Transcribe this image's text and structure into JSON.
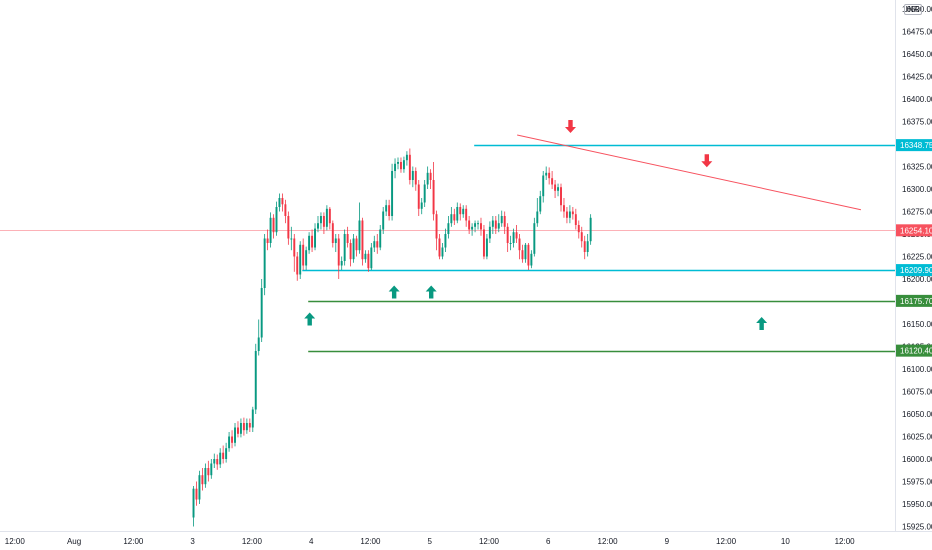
{
  "currency": "INR",
  "colors": {
    "up": "#089981",
    "down": "#f23645",
    "resistance": "#00bcd4",
    "support": "#388e3c",
    "trendline": "#f7525f",
    "last_price": "#f7525f",
    "arrow_up": "#089981",
    "arrow_down": "#f23645"
  },
  "chart_data": {
    "type": "candlestick",
    "ylim": [
      15920,
      16510
    ],
    "price_ticks": [
      "16500.00",
      "16475.00",
      "16450.00",
      "16425.00",
      "16400.00",
      "16375.00",
      "16350.00",
      "16325.00",
      "16300.00",
      "16275.00",
      "16250.00",
      "16225.00",
      "16200.00",
      "16175.00",
      "16150.00",
      "16125.00",
      "16100.00",
      "16075.00",
      "16050.00",
      "16025.00",
      "16000.00",
      "15975.00",
      "15950.00",
      "15925.00"
    ],
    "time_ticks": [
      {
        "x": -4.5,
        "label": "12:00"
      },
      {
        "x": -2.5,
        "label": "Aug"
      },
      {
        "x": -0.5,
        "label": "12:00"
      },
      {
        "x": 1.5,
        "label": "3"
      },
      {
        "x": 3.5,
        "label": "12:00"
      },
      {
        "x": 5.5,
        "label": "4"
      },
      {
        "x": 7.5,
        "label": "12:00"
      },
      {
        "x": 9.5,
        "label": "5"
      },
      {
        "x": 11.5,
        "label": "12:00"
      },
      {
        "x": 13.5,
        "label": "6"
      },
      {
        "x": 15.5,
        "label": "12:00"
      },
      {
        "x": 17.5,
        "label": "9"
      },
      {
        "x": 19.5,
        "label": "12:00"
      },
      {
        "x": 21.5,
        "label": "10"
      },
      {
        "x": 23.5,
        "label": "12:00"
      }
    ],
    "levels": [
      {
        "name": "resistance",
        "price": 16348.75,
        "label": "16348.75",
        "x_start": 11.0,
        "color": "resistance"
      },
      {
        "name": "support-upper",
        "price": 16209.9,
        "label": "16209.90",
        "x_start": 5.2,
        "color": "resistance"
      },
      {
        "name": "support-mid",
        "price": 16175.7,
        "label": "16175.70",
        "x_start": 5.4,
        "color": "support"
      },
      {
        "name": "support-lower",
        "price": 16120.4,
        "label": "16120.40",
        "x_start": 5.4,
        "color": "support"
      }
    ],
    "last_price": {
      "price": 16254.1,
      "label": "16254.10"
    },
    "trendline": {
      "x1": 12.45,
      "y1": 16360,
      "x2": 24.05,
      "y2": 16277
    },
    "arrows": [
      {
        "dir": "up",
        "x": 5.45,
        "price": 16155
      },
      {
        "dir": "up",
        "x": 8.3,
        "price": 16185
      },
      {
        "dir": "up",
        "x": 9.55,
        "price": 16185
      },
      {
        "dir": "down",
        "x": 14.25,
        "price": 16370
      },
      {
        "dir": "down",
        "x": 18.85,
        "price": 16332
      },
      {
        "dir": "up",
        "x": 20.7,
        "price": 16150
      }
    ],
    "candles": [
      [
        1.53,
        15935,
        15967,
        15925,
        15970
      ],
      [
        1.63,
        15967,
        15955,
        15948,
        15975
      ],
      [
        1.73,
        15955,
        15982,
        15950,
        15987
      ],
      [
        1.83,
        15982,
        15972,
        15965,
        15990
      ],
      [
        1.93,
        15972,
        15990,
        15968,
        15995
      ],
      [
        2.03,
        15990,
        15982,
        15975,
        15998
      ],
      [
        2.13,
        15982,
        15995,
        15978,
        16000
      ],
      [
        2.23,
        15995,
        16000,
        15990,
        16006
      ],
      [
        2.33,
        16000,
        15994,
        15988,
        16005
      ],
      [
        2.43,
        15994,
        16007,
        15990,
        16012
      ],
      [
        2.53,
        16007,
        16000,
        15995,
        16015
      ],
      [
        2.63,
        16000,
        16012,
        15996,
        16018
      ],
      [
        2.73,
        16012,
        16025,
        16008,
        16030
      ],
      [
        2.83,
        16025,
        16018,
        16012,
        16032
      ],
      [
        2.93,
        16018,
        16035,
        16014,
        16040
      ],
      [
        3.03,
        16035,
        16028,
        16024,
        16042
      ],
      [
        3.13,
        16028,
        16040,
        16024,
        16045
      ],
      [
        3.23,
        16040,
        16032,
        16026,
        16046
      ],
      [
        3.33,
        16032,
        16040,
        16028,
        16045
      ],
      [
        3.43,
        16040,
        16035,
        16030,
        16045
      ],
      [
        3.53,
        16035,
        16055,
        16030,
        16058
      ],
      [
        3.63,
        16055,
        16120,
        16050,
        16128
      ],
      [
        3.73,
        16120,
        16135,
        16115,
        16155
      ],
      [
        3.83,
        16135,
        16190,
        16130,
        16200
      ],
      [
        3.93,
        16190,
        16245,
        16182,
        16250
      ],
      [
        4.03,
        16245,
        16240,
        16232,
        16255
      ],
      [
        4.13,
        16240,
        16268,
        16235,
        16274
      ],
      [
        4.23,
        16268,
        16252,
        16245,
        16272
      ],
      [
        4.33,
        16252,
        16280,
        16248,
        16286
      ],
      [
        4.43,
        16280,
        16290,
        16275,
        16295
      ],
      [
        4.53,
        16290,
        16283,
        16275,
        16295
      ],
      [
        4.63,
        16283,
        16270,
        16262,
        16288
      ],
      [
        4.73,
        16270,
        16245,
        16238,
        16275
      ],
      [
        4.83,
        16245,
        16245,
        16232,
        16258
      ],
      [
        4.93,
        16245,
        16225,
        16208,
        16250
      ],
      [
        5.03,
        16225,
        16205,
        16198,
        16230
      ],
      [
        5.13,
        16205,
        16238,
        16200,
        16242
      ],
      [
        5.23,
        16238,
        16215,
        16210,
        16245
      ],
      [
        5.33,
        16215,
        16232,
        16210,
        16236
      ],
      [
        5.43,
        16232,
        16248,
        16228,
        16252
      ],
      [
        5.53,
        16248,
        16235,
        16230,
        16255
      ],
      [
        5.63,
        16235,
        16256,
        16232,
        16262
      ],
      [
        5.73,
        16256,
        16262,
        16252,
        16270
      ],
      [
        5.83,
        16262,
        16270,
        16255,
        16274
      ],
      [
        5.93,
        16270,
        16258,
        16250,
        16274
      ],
      [
        6.03,
        16258,
        16278,
        16254,
        16282
      ],
      [
        6.13,
        16278,
        16262,
        16255,
        16280
      ],
      [
        6.23,
        16262,
        16240,
        16235,
        16265
      ],
      [
        6.33,
        16240,
        16245,
        16230,
        16250
      ],
      [
        6.43,
        16245,
        16215,
        16200,
        16250
      ],
      [
        6.53,
        16215,
        16220,
        16210,
        16225
      ],
      [
        6.63,
        16220,
        16250,
        16215,
        16255
      ],
      [
        6.73,
        16250,
        16240,
        16235,
        16258
      ],
      [
        6.83,
        16240,
        16222,
        16214,
        16244
      ],
      [
        6.93,
        16222,
        16245,
        16218,
        16250
      ],
      [
        7.03,
        16245,
        16232,
        16225,
        16248
      ],
      [
        7.13,
        16232,
        16265,
        16228,
        16285
      ],
      [
        7.23,
        16265,
        16222,
        16215,
        16268
      ],
      [
        7.33,
        16222,
        16228,
        16218,
        16232
      ],
      [
        7.43,
        16228,
        16212,
        16208,
        16232
      ],
      [
        7.53,
        16212,
        16235,
        16210,
        16240
      ],
      [
        7.63,
        16235,
        16242,
        16230,
        16248
      ],
      [
        7.73,
        16242,
        16235,
        16228,
        16250
      ],
      [
        7.83,
        16235,
        16255,
        16232,
        16260
      ],
      [
        7.93,
        16255,
        16275,
        16250,
        16280
      ],
      [
        8.03,
        16275,
        16282,
        16270,
        16288
      ],
      [
        8.13,
        16282,
        16270,
        16265,
        16288
      ],
      [
        8.23,
        16270,
        16320,
        16265,
        16328
      ],
      [
        8.33,
        16320,
        16328,
        16312,
        16334
      ],
      [
        8.43,
        16328,
        16330,
        16322,
        16335
      ],
      [
        8.53,
        16330,
        16322,
        16318,
        16335
      ],
      [
        8.63,
        16322,
        16332,
        16318,
        16336
      ],
      [
        8.73,
        16332,
        16338,
        16326,
        16342
      ],
      [
        8.83,
        16338,
        16310,
        16305,
        16345
      ],
      [
        8.93,
        16310,
        16320,
        16302,
        16325
      ],
      [
        9.03,
        16320,
        16305,
        16298,
        16324
      ],
      [
        9.13,
        16305,
        16278,
        16270,
        16310
      ],
      [
        9.23,
        16278,
        16285,
        16272,
        16290
      ],
      [
        9.33,
        16285,
        16305,
        16280,
        16310
      ],
      [
        9.43,
        16305,
        16318,
        16300,
        16325
      ],
      [
        9.53,
        16318,
        16310,
        16300,
        16322
      ],
      [
        9.63,
        16310,
        16272,
        16265,
        16330
      ],
      [
        9.73,
        16272,
        16245,
        16232,
        16276
      ],
      [
        9.83,
        16245,
        16225,
        16222,
        16250
      ],
      [
        9.93,
        16225,
        16235,
        16222,
        16240
      ],
      [
        10.03,
        16235,
        16250,
        16230,
        16256
      ],
      [
        10.13,
        16250,
        16262,
        16245,
        16270
      ],
      [
        10.23,
        16262,
        16272,
        16258,
        16280
      ],
      [
        10.33,
        16272,
        16265,
        16260,
        16278
      ],
      [
        10.43,
        16265,
        16280,
        16262,
        16285
      ],
      [
        10.53,
        16280,
        16272,
        16265,
        16284
      ],
      [
        10.63,
        16272,
        16278,
        16268,
        16282
      ],
      [
        10.73,
        16278,
        16265,
        16258,
        16282
      ],
      [
        10.83,
        16265,
        16255,
        16250,
        16270
      ],
      [
        10.93,
        16255,
        16258,
        16248,
        16262
      ],
      [
        11.03,
        16258,
        16262,
        16252,
        16265
      ],
      [
        11.13,
        16262,
        16262,
        16255,
        16265
      ],
      [
        11.23,
        16262,
        16255,
        16248,
        16268
      ],
      [
        11.33,
        16255,
        16225,
        16222,
        16260
      ],
      [
        11.43,
        16225,
        16245,
        16222,
        16250
      ],
      [
        11.53,
        16245,
        16258,
        16240,
        16264
      ],
      [
        11.63,
        16258,
        16265,
        16250,
        16270
      ],
      [
        11.73,
        16265,
        16256,
        16250,
        16270
      ],
      [
        11.83,
        16256,
        16262,
        16252,
        16272
      ],
      [
        11.93,
        16262,
        16270,
        16258,
        16276
      ],
      [
        12.03,
        16270,
        16258,
        16250,
        16275
      ],
      [
        12.13,
        16258,
        16240,
        16230,
        16262
      ],
      [
        12.23,
        16240,
        16240,
        16232,
        16248
      ],
      [
        12.33,
        16240,
        16252,
        16235,
        16256
      ],
      [
        12.43,
        16252,
        16245,
        16240,
        16260
      ],
      [
        12.53,
        16245,
        16232,
        16222,
        16250
      ],
      [
        12.63,
        16232,
        16222,
        16218,
        16238
      ],
      [
        12.73,
        16222,
        16238,
        16218,
        16240
      ],
      [
        12.83,
        16238,
        16215,
        16210,
        16240
      ],
      [
        12.93,
        16215,
        16228,
        16212,
        16232
      ],
      [
        13.03,
        16228,
        16262,
        16225,
        16268
      ],
      [
        13.13,
        16262,
        16275,
        16258,
        16290
      ],
      [
        13.23,
        16275,
        16292,
        16272,
        16298
      ],
      [
        13.33,
        16292,
        16315,
        16285,
        16320
      ],
      [
        13.43,
        16315,
        16318,
        16310,
        16325
      ],
      [
        13.53,
        16318,
        16312,
        16305,
        16324
      ],
      [
        13.63,
        16312,
        16305,
        16300,
        16320
      ],
      [
        13.73,
        16305,
        16298,
        16290,
        16310
      ],
      [
        13.83,
        16298,
        16302,
        16292,
        16306
      ],
      [
        13.93,
        16302,
        16282,
        16275,
        16306
      ],
      [
        14.03,
        16282,
        16275,
        16268,
        16290
      ],
      [
        14.13,
        16275,
        16268,
        16262,
        16280
      ],
      [
        14.23,
        16268,
        16275,
        16262,
        16282
      ],
      [
        14.33,
        16275,
        16272,
        16266,
        16280
      ],
      [
        14.43,
        16272,
        16260,
        16255,
        16278
      ],
      [
        14.53,
        16260,
        16252,
        16245,
        16265
      ],
      [
        14.63,
        16252,
        16242,
        16235,
        16258
      ],
      [
        14.73,
        16242,
        16230,
        16222,
        16248
      ],
      [
        14.83,
        16230,
        16242,
        16225,
        16250
      ],
      [
        14.93,
        16242,
        16268,
        16238,
        16272
      ]
    ]
  }
}
